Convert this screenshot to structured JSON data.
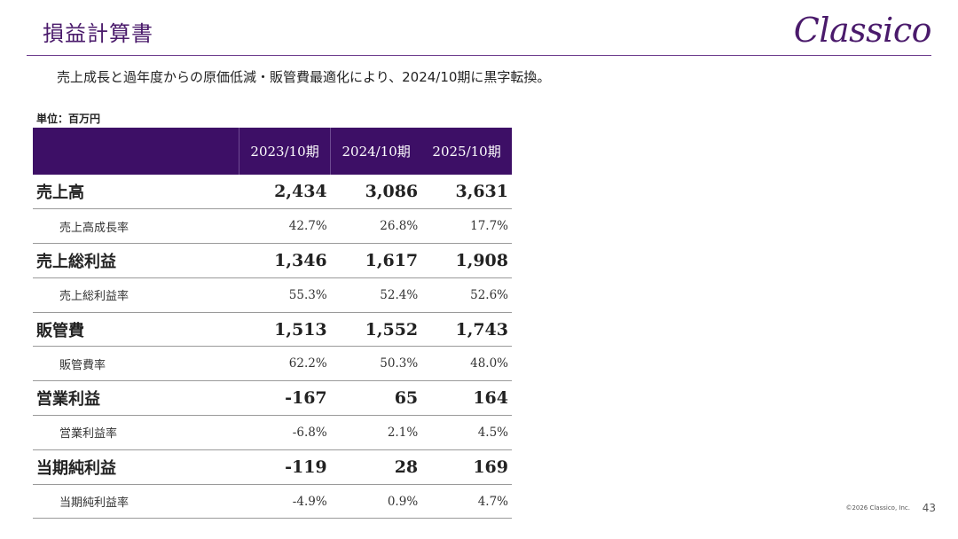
{
  "header": {
    "title": "損益計算書",
    "logo_text": "Classico"
  },
  "summary": "売上成長と過年度からの原価低減・販管費最適化により、2024/10期に黒字転換。",
  "unit_label": "単位：百万円",
  "table": {
    "columns": [
      "",
      "2023/10期",
      "2024/10期",
      "2025/10期"
    ],
    "rows": [
      {
        "label": "売上高",
        "values": [
          "2,434",
          "3,086",
          "3,631"
        ]
      },
      {
        "label": "売上高成長率",
        "values": [
          "42.7%",
          "26.8%",
          "17.7%"
        ]
      },
      {
        "label": "売上総利益",
        "values": [
          "1,346",
          "1,617",
          "1,908"
        ]
      },
      {
        "label": "売上総利益率",
        "values": [
          "55.3%",
          "52.4%",
          "52.6%"
        ]
      },
      {
        "label": "販管費",
        "values": [
          "1,513",
          "1,552",
          "1,743"
        ]
      },
      {
        "label": "販管費率",
        "values": [
          "62.2%",
          "50.3%",
          "48.0%"
        ]
      },
      {
        "label": "営業利益",
        "values": [
          "-167",
          "65",
          "164"
        ]
      },
      {
        "label": "営業利益率",
        "values": [
          "-6.8%",
          "2.1%",
          "4.5%"
        ]
      },
      {
        "label": "当期純利益",
        "values": [
          "-119",
          "28",
          "169"
        ]
      },
      {
        "label": "当期純利益率",
        "values": [
          "-4.9%",
          "0.9%",
          "4.7%"
        ]
      }
    ]
  },
  "footer": {
    "copyright": "©2026 Classico, Inc.",
    "page_number": "43"
  },
  "colors": {
    "brand_purple": "#4a1a6b",
    "header_fill": "#3d0f66"
  }
}
